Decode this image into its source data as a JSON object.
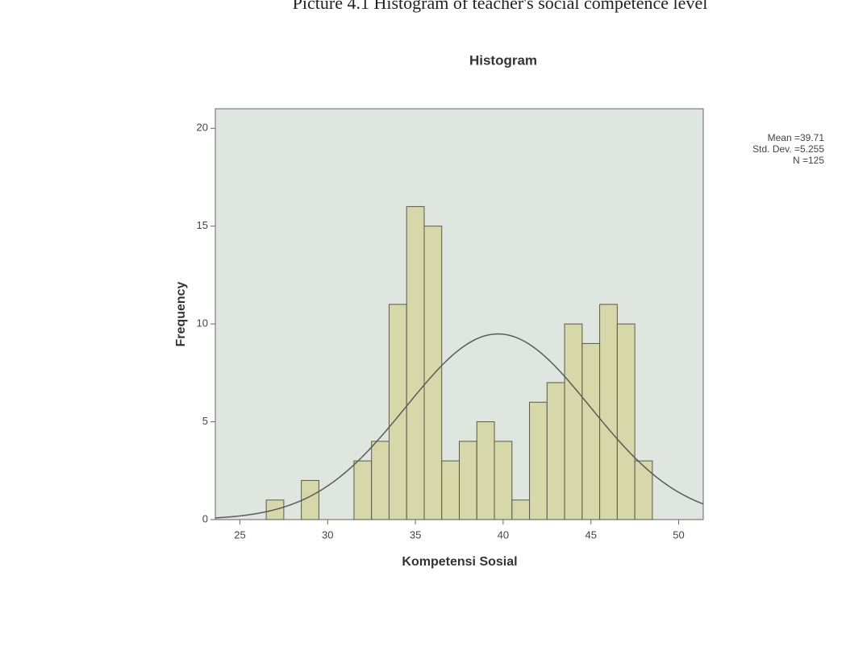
{
  "caption": "Picture 4.1 Histogram of teacher's social competence level",
  "chart_data": {
    "type": "histogram",
    "title": "Histogram",
    "xlabel": "Kompetensi Sosial",
    "ylabel": "Frequency",
    "bins": [
      26.5,
      27.5,
      28.5,
      29.5,
      30.5,
      31.5,
      32.5,
      33.5,
      34.5,
      35.5,
      36.5,
      37.5,
      38.5,
      39.5,
      40.5,
      41.5,
      42.5,
      43.5,
      44.5,
      45.5,
      46.5,
      47.5,
      48.5
    ],
    "counts": [
      1,
      0,
      2,
      0,
      0,
      3,
      4,
      11,
      16,
      15,
      3,
      4,
      5,
      4,
      1,
      6,
      7,
      10,
      9,
      11,
      10,
      3
    ],
    "color": "#d6d6a0",
    "edge_color": "#5a5a4a",
    "background": "#dfe5df",
    "curve_color": "#5a5a5a",
    "xlim": [
      23.6,
      51.4
    ],
    "ylim": [
      0,
      21
    ],
    "xticks": [
      25,
      30,
      35,
      40,
      45,
      50
    ],
    "yticks": [
      0,
      5,
      10,
      15,
      20
    ],
    "stats": [
      {
        "label": "Mean =",
        "value": 39.71
      },
      {
        "label": "Std. Dev. =",
        "value": 5.255
      },
      {
        "label": "N =",
        "value": 125
      }
    ]
  }
}
